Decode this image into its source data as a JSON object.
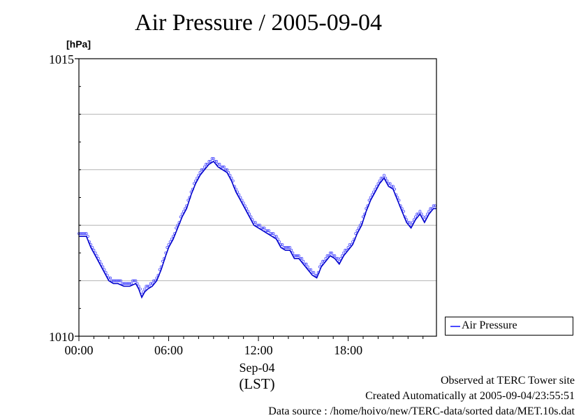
{
  "chart_data": {
    "type": "line",
    "title": "Air Pressure / 2005-09-04",
    "ylabel": "[hPa]",
    "ylim": [
      1010,
      1015
    ],
    "yticks": [
      "1015",
      "1010"
    ],
    "xlim": [
      0,
      23.9
    ],
    "xticks": [
      {
        "value": 0,
        "label": "00:00"
      },
      {
        "value": 6,
        "label": "06:00"
      },
      {
        "value": 12,
        "label": "12:00"
      },
      {
        "value": 18,
        "label": "18:00"
      }
    ],
    "x_date_label": "Sep-04",
    "x_timezone_label": "(LST)",
    "grid": "horizontal",
    "legend_position": "bottom-right, outside plot",
    "series": [
      {
        "name": "Air Pressure",
        "color": "#4b4bff",
        "line_color": "#0000cc",
        "x": [
          0.0,
          0.5,
          0.8,
          1.0,
          1.2,
          1.4,
          1.6,
          1.8,
          2.0,
          2.3,
          2.6,
          3.0,
          3.4,
          3.8,
          4.0,
          4.2,
          4.4,
          4.6,
          4.9,
          5.2,
          5.5,
          5.8,
          6.0,
          6.3,
          6.6,
          6.9,
          7.2,
          7.5,
          7.8,
          8.1,
          8.4,
          8.7,
          9.0,
          9.3,
          9.6,
          9.9,
          10.2,
          10.5,
          10.8,
          11.1,
          11.4,
          11.7,
          12.0,
          12.3,
          12.6,
          12.9,
          13.2,
          13.5,
          13.8,
          14.1,
          14.4,
          14.7,
          15.0,
          15.3,
          15.6,
          15.9,
          16.2,
          16.5,
          16.8,
          17.1,
          17.4,
          17.7,
          18.0,
          18.3,
          18.6,
          18.9,
          19.2,
          19.5,
          19.8,
          20.1,
          20.4,
          20.7,
          21.0,
          21.3,
          21.6,
          21.9,
          22.2,
          22.5,
          22.8,
          23.1,
          23.4,
          23.7,
          23.9
        ],
        "y": [
          1011.8,
          1011.8,
          1011.6,
          1011.5,
          1011.4,
          1011.3,
          1011.2,
          1011.1,
          1011.0,
          1010.95,
          1010.95,
          1010.9,
          1010.9,
          1010.95,
          1010.85,
          1010.7,
          1010.8,
          1010.85,
          1010.9,
          1011.0,
          1011.2,
          1011.45,
          1011.6,
          1011.75,
          1011.95,
          1012.15,
          1012.3,
          1012.55,
          1012.75,
          1012.9,
          1013.0,
          1013.1,
          1013.15,
          1013.05,
          1013.0,
          1012.95,
          1012.8,
          1012.6,
          1012.45,
          1012.3,
          1012.15,
          1012.0,
          1011.95,
          1011.9,
          1011.85,
          1011.8,
          1011.75,
          1011.6,
          1011.55,
          1011.55,
          1011.4,
          1011.4,
          1011.3,
          1011.2,
          1011.1,
          1011.05,
          1011.25,
          1011.35,
          1011.45,
          1011.4,
          1011.3,
          1011.45,
          1011.55,
          1011.65,
          1011.85,
          1012.0,
          1012.25,
          1012.45,
          1012.6,
          1012.75,
          1012.85,
          1012.7,
          1012.65,
          1012.45,
          1012.25,
          1012.05,
          1011.95,
          1012.1,
          1012.2,
          1012.05,
          1012.2,
          1012.3,
          1012.3
        ]
      }
    ]
  },
  "footer": {
    "observed": "Observed at TERC Tower site",
    "created": "Created Automatically at 2005-09-04/23:55:51",
    "source": "Data source : /home/hoivo/new/TERC-data/sorted  data/MET.10s.dat"
  }
}
